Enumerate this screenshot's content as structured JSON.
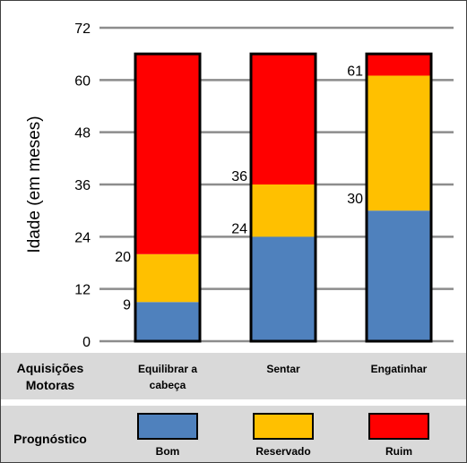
{
  "chart_data": {
    "type": "bar",
    "stacked": true,
    "ylabel": "Idade (em meses)",
    "ylim": [
      0,
      72
    ],
    "yticks": [
      "0",
      "12",
      "24",
      "36",
      "48",
      "60",
      "72"
    ],
    "grid": true,
    "categories": [
      "Equilibrar a\ncabeça",
      "Sentar",
      "Engatinhar"
    ],
    "totals": [
      66,
      66,
      66
    ],
    "series": [
      {
        "name": "Bom",
        "color": "#4f81bd",
        "values": [
          9,
          24,
          30
        ]
      },
      {
        "name": "Reservado",
        "color": "#ffc000",
        "values": [
          11,
          12,
          31
        ]
      },
      {
        "name": "Ruim",
        "color": "#ff0000",
        "values": [
          46,
          30,
          5
        ]
      }
    ],
    "boundary_labels": [
      [
        "9",
        "20"
      ],
      [
        "24",
        "36"
      ],
      [
        "30",
        "61"
      ]
    ]
  },
  "table": {
    "motor_row_label": "Aquisições\nMotoras",
    "prognosis_row_label": "Prognóstico"
  }
}
